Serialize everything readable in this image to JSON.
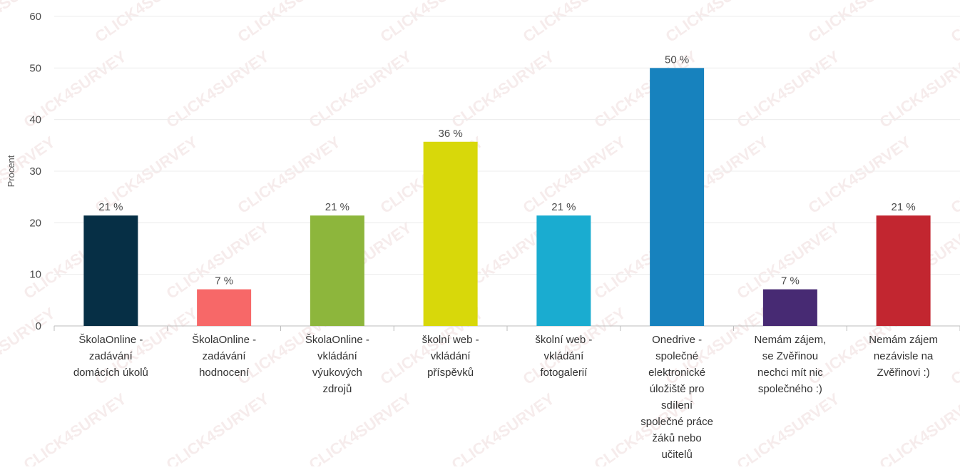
{
  "chart_data": {
    "type": "bar",
    "ylabel": "Procent",
    "ylim": [
      0,
      60
    ],
    "yticks": [
      0,
      10,
      20,
      30,
      40,
      50,
      60
    ],
    "grid": true,
    "categories": [
      [
        "ŠkolaOnline -",
        "zadávání",
        "domácích úkolů"
      ],
      [
        "ŠkolaOnline -",
        "zadávání",
        "hodnocení"
      ],
      [
        "ŠkolaOnline -",
        "vkládání",
        "výukových",
        "zdrojů"
      ],
      [
        "školní web -",
        "vkládání",
        "příspěvků"
      ],
      [
        "školní web -",
        "vkládání",
        "fotogalerií"
      ],
      [
        "Onedrive -",
        "společné",
        "elektronické",
        "úložiště pro",
        "sdílení",
        "společné práce",
        "žáků nebo",
        "učitelů"
      ],
      [
        "Nemám zájem,",
        "se Zvěřinou",
        "nechci mít nic",
        "společného :)"
      ],
      [
        "Nemám zájem",
        "nezávisle na",
        "Zvěřinovi :)"
      ]
    ],
    "values": [
      21.4,
      7.1,
      21.4,
      35.7,
      21.4,
      50,
      7.1,
      21.4
    ],
    "data_labels": [
      "21 %",
      "7 %",
      "21 %",
      "36 %",
      "21 %",
      "50 %",
      "7 %",
      "21 %"
    ],
    "colors": [
      "#062f45",
      "#f76868",
      "#8db63c",
      "#d8d80a",
      "#1aacd0",
      "#1782be",
      "#472a73",
      "#c22630"
    ]
  },
  "watermark": "CLICK4SURVEY"
}
